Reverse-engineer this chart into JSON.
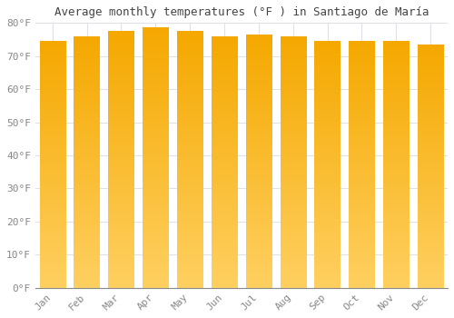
{
  "title": "Average monthly temperatures (°F ) in Santiago de María",
  "months": [
    "Jan",
    "Feb",
    "Mar",
    "Apr",
    "May",
    "Jun",
    "Jul",
    "Aug",
    "Sep",
    "Oct",
    "Nov",
    "Dec"
  ],
  "values": [
    74.5,
    76.0,
    77.5,
    78.5,
    77.5,
    76.0,
    76.5,
    76.0,
    74.5,
    74.5,
    74.5,
    73.5
  ],
  "ylim": [
    0,
    80
  ],
  "yticks": [
    0,
    10,
    20,
    30,
    40,
    50,
    60,
    70,
    80
  ],
  "ytick_labels": [
    "0°F",
    "10°F",
    "20°F",
    "30°F",
    "40°F",
    "50°F",
    "60°F",
    "70°F",
    "80°F"
  ],
  "bar_color_top": "#F5A800",
  "bar_color_bottom": "#FFD060",
  "background_color": "#FFFFFF",
  "grid_color": "#E0E0E8",
  "title_fontsize": 9,
  "tick_fontsize": 8,
  "title_color": "#444444",
  "tick_color": "#888888",
  "bar_width": 0.75
}
